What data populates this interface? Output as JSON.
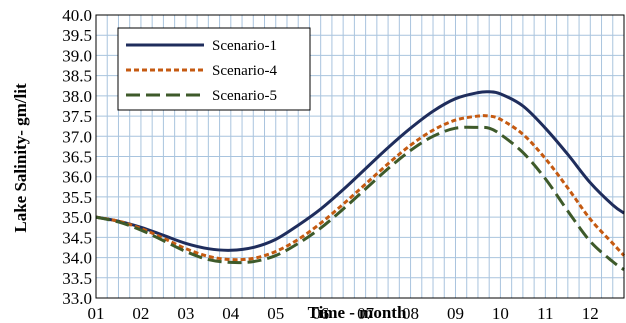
{
  "chart_data": {
    "type": "line",
    "title": "",
    "xlabel": "Time  - month",
    "ylabel": "Lake Salinity- gm/lit",
    "ylim": [
      33.0,
      40.0
    ],
    "y_ticks": [
      "33.0",
      "33.5",
      "34.0",
      "34.5",
      "35.0",
      "35.5",
      "36.0",
      "36.5",
      "37.0",
      "37.5",
      "38.0",
      "38.5",
      "39.0",
      "39.5",
      "40.0"
    ],
    "x_ticks": [
      "01",
      "02",
      "03",
      "04",
      "05",
      "06",
      "07",
      "08",
      "09",
      "10",
      "11",
      "12"
    ],
    "xlim": [
      1,
      12.75
    ],
    "grid": true,
    "legend_placement": "top-left",
    "series": [
      {
        "name": "Scenario-1",
        "color": "#1f2d5c",
        "dash": "solid",
        "points": [
          [
            1,
            35.0
          ],
          [
            1.5,
            34.9
          ],
          [
            2,
            34.75
          ],
          [
            2.5,
            34.55
          ],
          [
            3,
            34.35
          ],
          [
            3.5,
            34.22
          ],
          [
            4,
            34.18
          ],
          [
            4.5,
            34.25
          ],
          [
            5,
            34.45
          ],
          [
            5.5,
            34.8
          ],
          [
            6,
            35.2
          ],
          [
            6.5,
            35.68
          ],
          [
            7,
            36.2
          ],
          [
            7.5,
            36.72
          ],
          [
            8,
            37.2
          ],
          [
            8.5,
            37.62
          ],
          [
            9,
            37.93
          ],
          [
            9.5,
            38.08
          ],
          [
            9.75,
            38.1
          ],
          [
            10,
            38.05
          ],
          [
            10.5,
            37.75
          ],
          [
            11,
            37.2
          ],
          [
            11.5,
            36.55
          ],
          [
            12,
            35.85
          ],
          [
            12.5,
            35.3
          ],
          [
            12.75,
            35.1
          ]
        ]
      },
      {
        "name": "Scenario-4",
        "color": "#c55a11",
        "dash": "short",
        "points": [
          [
            1,
            35.0
          ],
          [
            1.5,
            34.9
          ],
          [
            2,
            34.72
          ],
          [
            2.5,
            34.48
          ],
          [
            3,
            34.22
          ],
          [
            3.5,
            34.03
          ],
          [
            4,
            33.95
          ],
          [
            4.5,
            33.98
          ],
          [
            5,
            34.15
          ],
          [
            5.5,
            34.45
          ],
          [
            6,
            34.85
          ],
          [
            6.5,
            35.32
          ],
          [
            7,
            35.82
          ],
          [
            7.5,
            36.32
          ],
          [
            8,
            36.78
          ],
          [
            8.5,
            37.15
          ],
          [
            9,
            37.4
          ],
          [
            9.5,
            37.5
          ],
          [
            9.75,
            37.5
          ],
          [
            10,
            37.42
          ],
          [
            10.5,
            37.05
          ],
          [
            11,
            36.45
          ],
          [
            11.5,
            35.72
          ],
          [
            12,
            34.95
          ],
          [
            12.5,
            34.35
          ],
          [
            12.75,
            34.05
          ]
        ]
      },
      {
        "name": "Scenario-5",
        "color": "#3e5a2a",
        "dash": "long",
        "points": [
          [
            1,
            35.0
          ],
          [
            1.5,
            34.88
          ],
          [
            2,
            34.68
          ],
          [
            2.5,
            34.42
          ],
          [
            3,
            34.15
          ],
          [
            3.5,
            33.95
          ],
          [
            4,
            33.88
          ],
          [
            4.5,
            33.9
          ],
          [
            5,
            34.05
          ],
          [
            5.5,
            34.35
          ],
          [
            6,
            34.73
          ],
          [
            6.5,
            35.2
          ],
          [
            7,
            35.7
          ],
          [
            7.5,
            36.2
          ],
          [
            8,
            36.65
          ],
          [
            8.5,
            37.0
          ],
          [
            9,
            37.2
          ],
          [
            9.5,
            37.22
          ],
          [
            9.75,
            37.2
          ],
          [
            10,
            37.05
          ],
          [
            10.5,
            36.6
          ],
          [
            11,
            35.95
          ],
          [
            11.5,
            35.15
          ],
          [
            12,
            34.4
          ],
          [
            12.5,
            33.9
          ],
          [
            12.75,
            33.7
          ]
        ]
      }
    ]
  }
}
